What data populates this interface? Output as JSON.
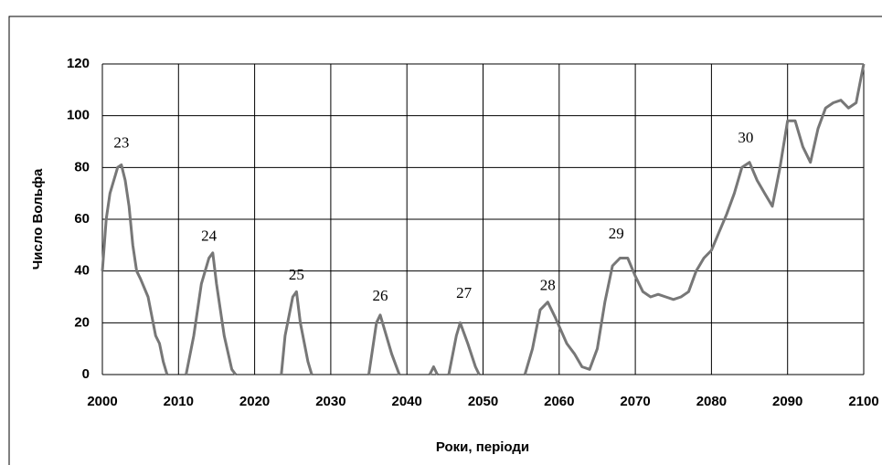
{
  "chart_data": {
    "type": "line",
    "xlabel": "Роки, періоди",
    "ylabel": "Число Вольфа",
    "x": [
      2000,
      2000.5,
      2001,
      2001.5,
      2002,
      2002.5,
      2003,
      2003.5,
      2004,
      2004.5,
      2005,
      2006,
      2007,
      2007.5,
      2008,
      2008.5,
      2010,
      2011,
      2012,
      2013,
      2014,
      2014.5,
      2015,
      2016,
      2017,
      2017.5,
      2020,
      2023.5,
      2024,
      2025,
      2025.5,
      2026,
      2027,
      2027.5,
      2031,
      2035,
      2036,
      2036.5,
      2037,
      2038,
      2039,
      2041,
      2043,
      2043.5,
      2044,
      2045,
      2045.5,
      2046.5,
      2047,
      2048,
      2049,
      2049.5,
      2052,
      2055.5,
      2056.5,
      2057.5,
      2058.5,
      2059.5,
      2061,
      2062,
      2063,
      2064,
      2065,
      2066,
      2067,
      2068,
      2069,
      2070,
      2071,
      2072,
      2073,
      2074,
      2075,
      2076,
      2077,
      2078,
      2079,
      2080,
      2081,
      2082,
      2083,
      2084,
      2085,
      2086,
      2087,
      2088,
      2089,
      2090,
      2091,
      2092,
      2093,
      2094,
      2095,
      2096,
      2097,
      2098,
      2099,
      2100
    ],
    "series": [
      {
        "name": "Число Вольфа",
        "color": "#777777",
        "values": [
          40,
          60,
          70,
          75,
          80,
          81,
          75,
          65,
          50,
          40,
          37,
          30,
          15,
          12,
          5,
          0,
          null,
          0,
          15,
          35,
          45,
          47,
          35,
          15,
          2,
          0,
          null,
          0,
          15,
          30,
          32,
          20,
          5,
          0,
          null,
          0,
          20,
          23,
          18,
          8,
          0,
          null,
          0,
          3,
          0,
          null,
          0,
          15,
          20,
          12,
          3,
          0,
          null,
          0,
          10,
          25,
          28,
          22,
          12,
          8,
          3,
          2,
          10,
          28,
          42,
          45,
          45,
          38,
          32,
          30,
          31,
          30,
          29,
          30,
          32,
          40,
          45,
          48,
          55,
          62,
          70,
          80,
          82,
          75,
          70,
          65,
          80,
          98,
          98,
          88,
          82,
          95,
          103,
          105,
          106,
          103,
          105,
          120
        ]
      }
    ],
    "annotations": [
      "23",
      "24",
      "25",
      "26",
      "27",
      "28",
      "29",
      "30"
    ],
    "xlim": [
      2000,
      2100
    ],
    "xticks": [
      2000,
      2010,
      2020,
      2030,
      2040,
      2050,
      2060,
      2070,
      2080,
      2090,
      2100
    ],
    "ylim": [
      0,
      120
    ],
    "yticks": [
      0,
      20,
      40,
      60,
      80,
      100,
      120
    ],
    "grid": true
  }
}
